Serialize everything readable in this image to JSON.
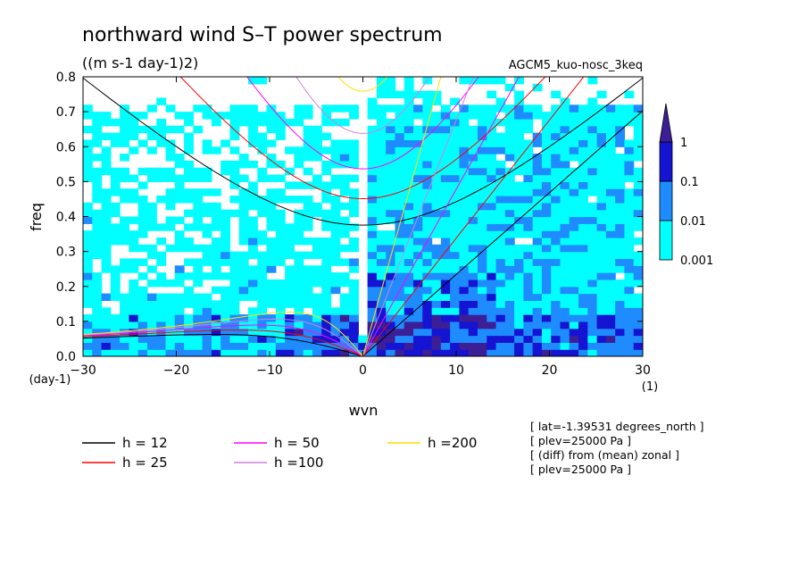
{
  "chart_data": {
    "type": "heatmap",
    "title": "northward wind S–T power spectrum",
    "subtitle": "((m s-1 day-1)2)",
    "run_label": "AGCM5_kuo-nosc_3keq",
    "xlabel": "wvn",
    "ylabel": "freq",
    "x_unit": "(1)",
    "y_unit": "(day-1)",
    "xlim": [
      -30,
      30
    ],
    "ylim": [
      0,
      0.8
    ],
    "x_ticks": [
      -30,
      -20,
      -10,
      0,
      10,
      20,
      30
    ],
    "y_ticks": [
      0.0,
      0.1,
      0.2,
      0.3,
      0.4,
      0.5,
      0.6,
      0.7,
      0.8
    ],
    "contour_levels": [
      0.001,
      0.01,
      0.1,
      1
    ],
    "colors": {
      "level_0.001": "#00ffff",
      "level_0.01": "#1e8cff",
      "level_0.1": "#1414d2",
      "level_1": "#3c1e96",
      "h12": "#000000",
      "h25": "#ff0000",
      "h50": "#ff00ff",
      "h100": "#d080e0",
      "h200": "#ffe000"
    },
    "legend": [
      {
        "key": "h12",
        "label": "h = 12"
      },
      {
        "key": "h25",
        "label": "h = 25"
      },
      {
        "key": "h50",
        "label": "h = 50"
      },
      {
        "key": "h100",
        "label": "h =100"
      },
      {
        "key": "h200",
        "label": "h =200"
      }
    ],
    "equivalent_depths": [
      12,
      25,
      50,
      100,
      200
    ],
    "grid": false,
    "info_lines": [
      "[ lat=-1.39531 degrees_north ]",
      "[ plev=25000 Pa ]",
      "[ (diff) from (mean) zonal ]",
      "[ plev=25000 Pa ]"
    ]
  }
}
